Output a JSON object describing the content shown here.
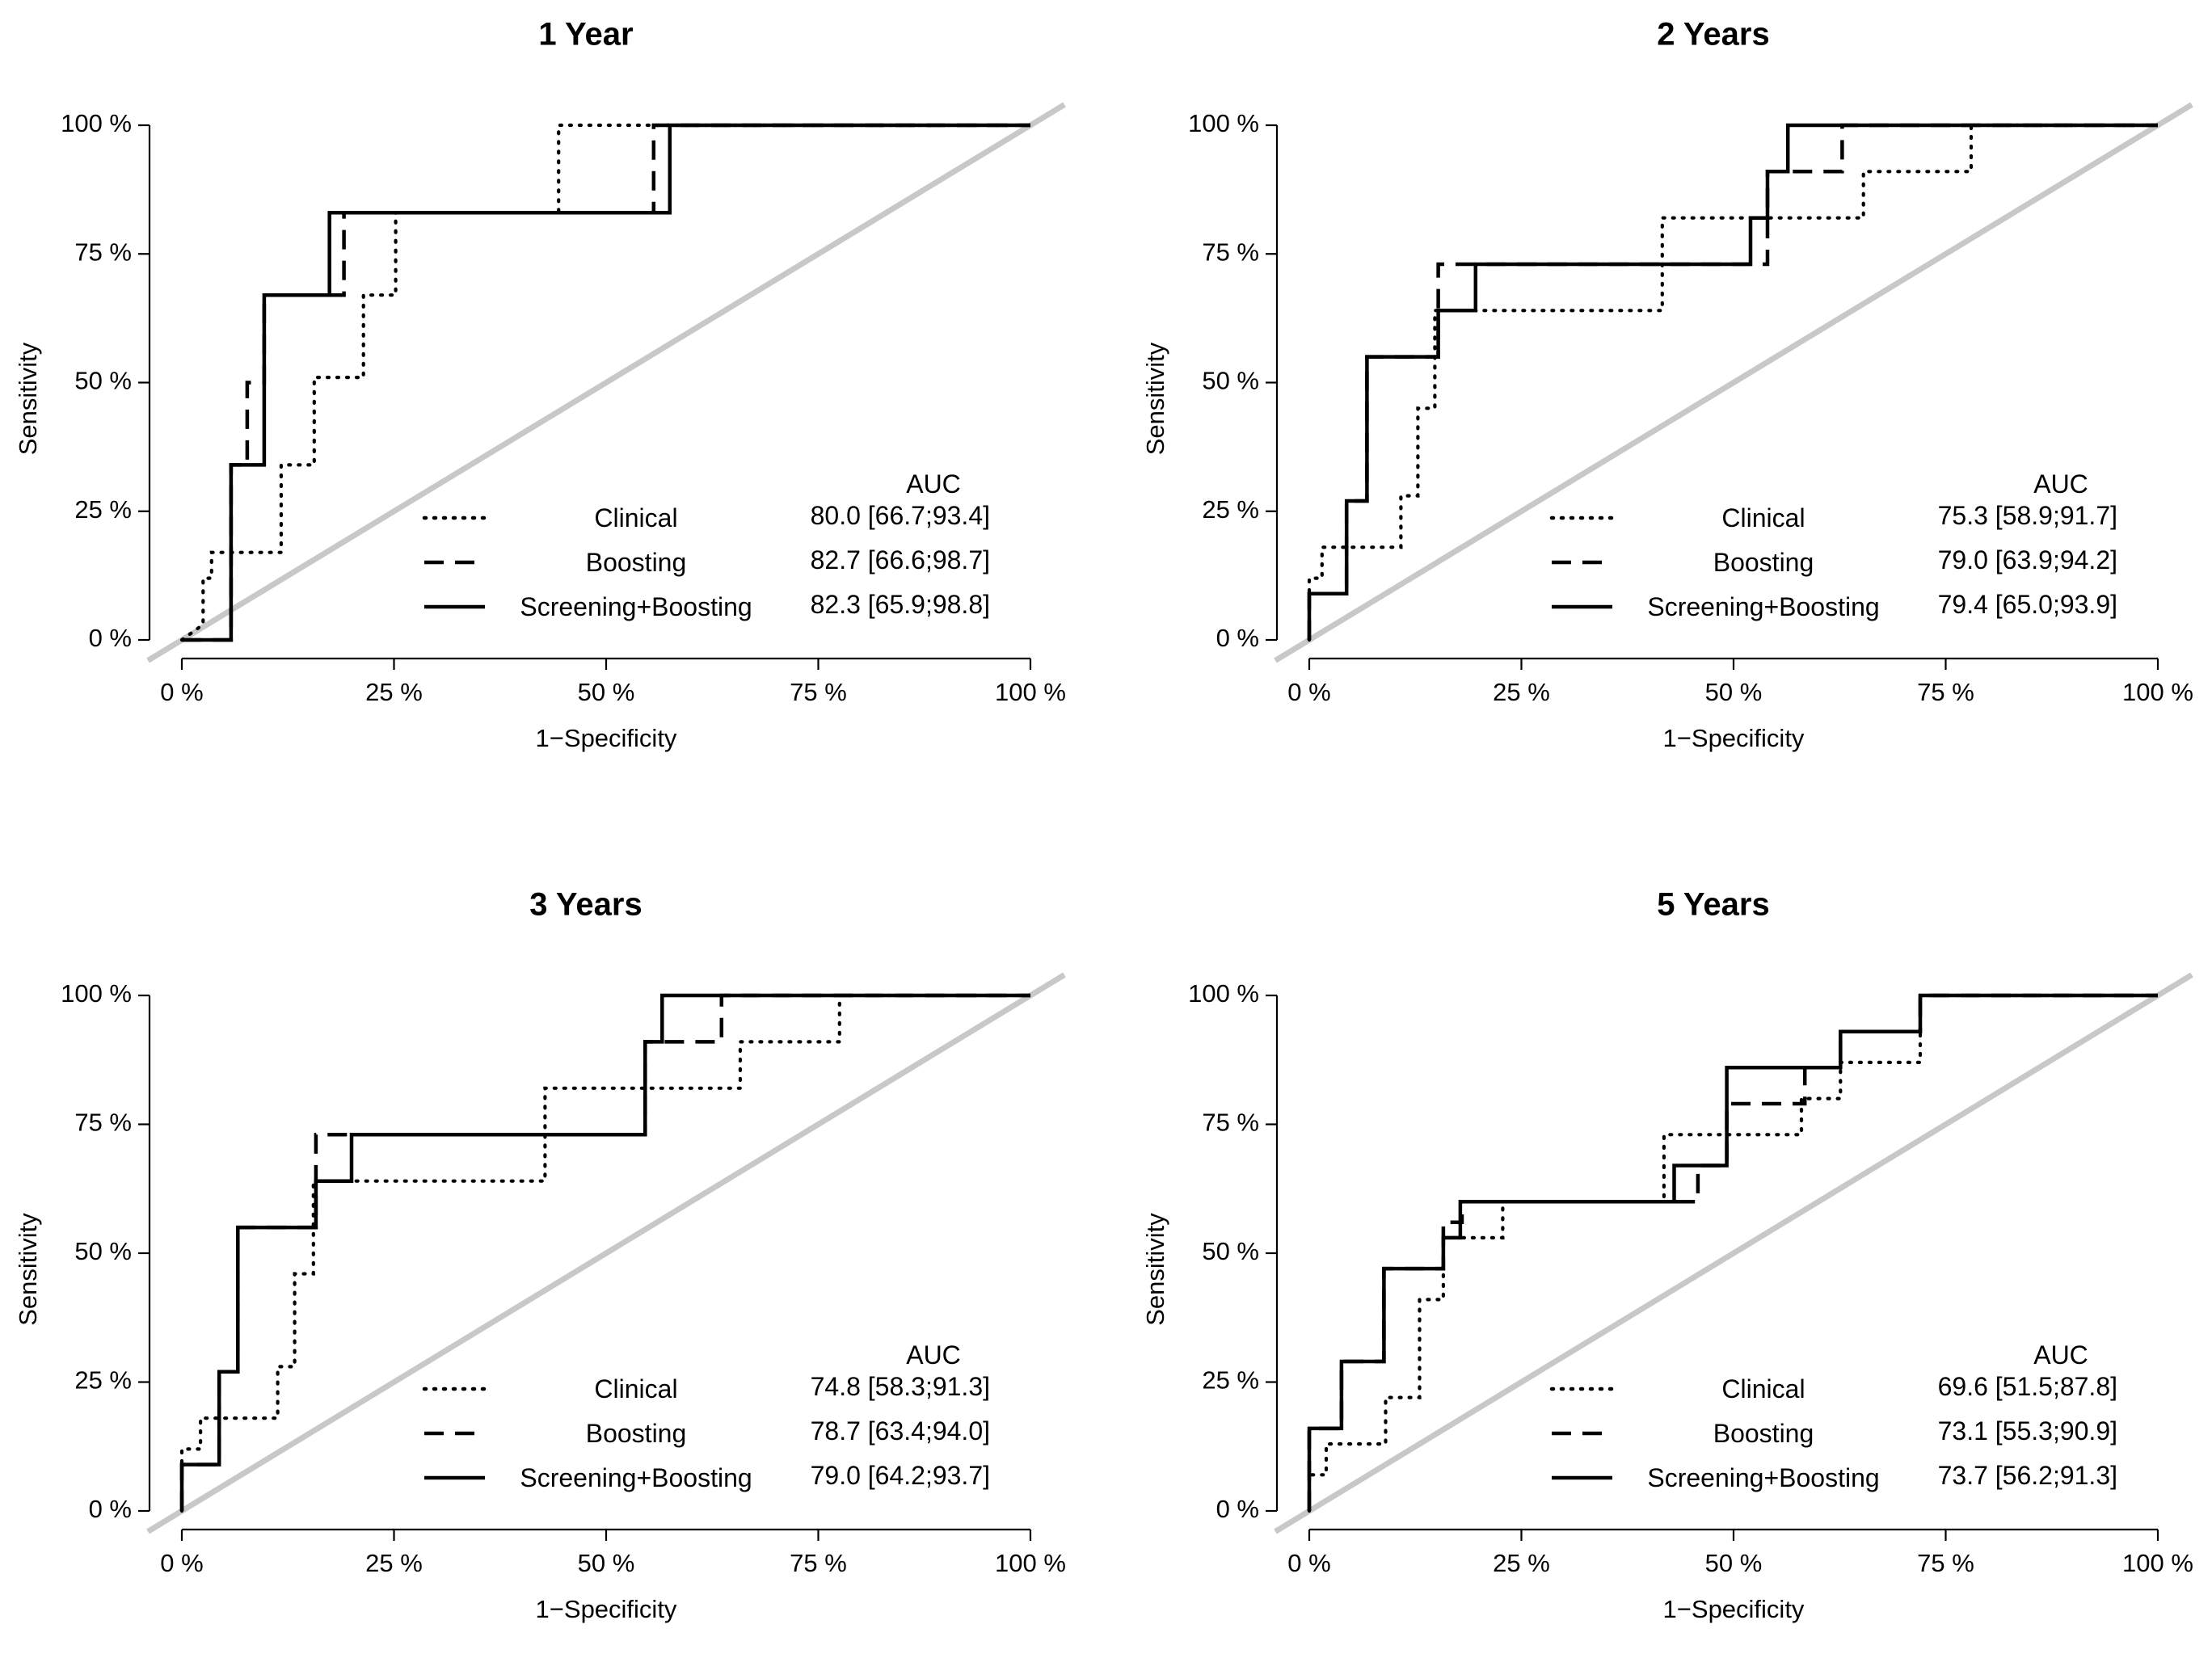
{
  "colors": {
    "curve": "#000000",
    "diagonal": "#c8c8c8",
    "background": "#ffffff"
  },
  "chart_data": [
    {
      "type": "line",
      "title": "1 Year",
      "xlabel": "1−Specificity",
      "ylabel": "Sensitivity",
      "xlim": [
        0,
        100
      ],
      "ylim": [
        0,
        100
      ],
      "x_ticks": [
        0,
        25,
        50,
        75,
        100
      ],
      "y_ticks": [
        0,
        25,
        50,
        75,
        100
      ],
      "x_tick_labels": [
        "0 %",
        "25 %",
        "50 %",
        "75 %",
        "100 %"
      ],
      "y_tick_labels": [
        "0 %",
        "25 %",
        "50 %",
        "75 %",
        "100 %"
      ],
      "auc_header": "AUC",
      "series": [
        {
          "name": "Clinical",
          "line_style": "dotted",
          "auc": "80.0 [66.7;93.4]",
          "points": [
            [
              0,
              0
            ],
            [
              2.5,
              3
            ],
            [
              2.5,
              12
            ],
            [
              3.5,
              12
            ],
            [
              3.5,
              17
            ],
            [
              11.7,
              17
            ],
            [
              11.7,
              34
            ],
            [
              15.6,
              34
            ],
            [
              15.6,
              51
            ],
            [
              21.4,
              51
            ],
            [
              21.4,
              67
            ],
            [
              25.2,
              67
            ],
            [
              25.2,
              83
            ],
            [
              44.4,
              83
            ],
            [
              44.4,
              100
            ],
            [
              100,
              100
            ]
          ]
        },
        {
          "name": "Boosting",
          "line_style": "dashed",
          "auc": "82.7 [66.6;98.7]",
          "points": [
            [
              0,
              0
            ],
            [
              5.8,
              0
            ],
            [
              5.8,
              34
            ],
            [
              7.7,
              34
            ],
            [
              7.7,
              50
            ],
            [
              9.7,
              50
            ],
            [
              9.7,
              67
            ],
            [
              19.1,
              67
            ],
            [
              19.1,
              83
            ],
            [
              55.6,
              83
            ],
            [
              55.6,
              100
            ],
            [
              100,
              100
            ]
          ]
        },
        {
          "name": "Screening+Boosting",
          "line_style": "solid",
          "auc": "82.3 [65.9;98.8]",
          "points": [
            [
              0,
              0
            ],
            [
              5.8,
              0
            ],
            [
              5.8,
              34
            ],
            [
              9.7,
              34
            ],
            [
              9.7,
              67
            ],
            [
              17.4,
              67
            ],
            [
              17.4,
              83
            ],
            [
              57.5,
              83
            ],
            [
              57.5,
              100
            ],
            [
              100,
              100
            ]
          ]
        }
      ]
    },
    {
      "type": "line",
      "title": "2 Years",
      "xlabel": "1−Specificity",
      "ylabel": "Sensitivity",
      "xlim": [
        0,
        100
      ],
      "ylim": [
        0,
        100
      ],
      "x_ticks": [
        0,
        25,
        50,
        75,
        100
      ],
      "y_ticks": [
        0,
        25,
        50,
        75,
        100
      ],
      "x_tick_labels": [
        "0 %",
        "25 %",
        "50 %",
        "75 %",
        "100 %"
      ],
      "y_tick_labels": [
        "0 %",
        "25 %",
        "50 %",
        "75 %",
        "100 %"
      ],
      "auc_header": "AUC",
      "series": [
        {
          "name": "Clinical",
          "line_style": "dotted",
          "auc": "75.3 [58.9;91.7]",
          "points": [
            [
              0,
              0
            ],
            [
              0,
              12
            ],
            [
              1.5,
              12
            ],
            [
              1.5,
              18
            ],
            [
              10.8,
              18
            ],
            [
              10.8,
              28
            ],
            [
              12.8,
              28
            ],
            [
              12.8,
              45
            ],
            [
              14.8,
              45
            ],
            [
              14.8,
              64
            ],
            [
              41.6,
              64
            ],
            [
              41.6,
              82
            ],
            [
              65.3,
              82
            ],
            [
              65.3,
              91
            ],
            [
              78.0,
              91
            ],
            [
              78.0,
              100
            ],
            [
              100,
              100
            ]
          ]
        },
        {
          "name": "Boosting",
          "line_style": "dashed",
          "auc": "79.0 [63.9;94.2]",
          "points": [
            [
              0,
              0
            ],
            [
              0,
              9
            ],
            [
              4.4,
              9
            ],
            [
              4.4,
              27
            ],
            [
              6.8,
              27
            ],
            [
              6.8,
              55
            ],
            [
              15.2,
              55
            ],
            [
              15.2,
              73
            ],
            [
              19.6,
              73
            ],
            [
              19.6,
              73
            ],
            [
              54.0,
              73
            ],
            [
              54.0,
              91
            ],
            [
              62.8,
              91
            ],
            [
              62.8,
              100
            ],
            [
              100,
              100
            ]
          ]
        },
        {
          "name": "Screening+Boosting",
          "line_style": "solid",
          "auc": "79.4 [65.0;93.9]",
          "points": [
            [
              0,
              0
            ],
            [
              0,
              9
            ],
            [
              4.4,
              9
            ],
            [
              4.4,
              27
            ],
            [
              6.8,
              27
            ],
            [
              6.8,
              55
            ],
            [
              15.2,
              55
            ],
            [
              15.2,
              64
            ],
            [
              19.6,
              64
            ],
            [
              19.6,
              73
            ],
            [
              52.0,
              73
            ],
            [
              52.0,
              82
            ],
            [
              54.0,
              82
            ],
            [
              54.0,
              91
            ],
            [
              56.4,
              91
            ],
            [
              56.4,
              100
            ],
            [
              100,
              100
            ]
          ]
        }
      ]
    },
    {
      "type": "line",
      "title": "3 Years",
      "xlabel": "1−Specificity",
      "ylabel": "Sensitivity",
      "xlim": [
        0,
        100
      ],
      "ylim": [
        0,
        100
      ],
      "x_ticks": [
        0,
        25,
        50,
        75,
        100
      ],
      "y_ticks": [
        0,
        25,
        50,
        75,
        100
      ],
      "x_tick_labels": [
        "0 %",
        "25 %",
        "50 %",
        "75 %",
        "100 %"
      ],
      "y_tick_labels": [
        "0 %",
        "25 %",
        "50 %",
        "75 %",
        "100 %"
      ],
      "auc_header": "AUC",
      "series": [
        {
          "name": "Clinical",
          "line_style": "dotted",
          "auc": "74.8 [58.3;91.3]",
          "points": [
            [
              0,
              0
            ],
            [
              0,
              12
            ],
            [
              2.2,
              12
            ],
            [
              2.2,
              18
            ],
            [
              11.3,
              18
            ],
            [
              11.3,
              28
            ],
            [
              13.3,
              28
            ],
            [
              13.3,
              46
            ],
            [
              15.5,
              46
            ],
            [
              15.5,
              64
            ],
            [
              42.8,
              64
            ],
            [
              42.8,
              82
            ],
            [
              65.8,
              82
            ],
            [
              65.8,
              91
            ],
            [
              77.5,
              91
            ],
            [
              77.5,
              100
            ],
            [
              100,
              100
            ]
          ]
        },
        {
          "name": "Boosting",
          "line_style": "dashed",
          "auc": "78.7 [63.4;94.0]",
          "points": [
            [
              0,
              0
            ],
            [
              0,
              9
            ],
            [
              4.4,
              9
            ],
            [
              4.4,
              27
            ],
            [
              6.6,
              27
            ],
            [
              6.6,
              55
            ],
            [
              15.8,
              55
            ],
            [
              15.8,
              73
            ],
            [
              20.0,
              73
            ],
            [
              54.6,
              73
            ],
            [
              54.6,
              91
            ],
            [
              63.6,
              91
            ],
            [
              63.6,
              100
            ],
            [
              100,
              100
            ]
          ]
        },
        {
          "name": "Screening+Boosting",
          "line_style": "solid",
          "auc": "79.0 [64.2;93.7]",
          "points": [
            [
              0,
              0
            ],
            [
              0,
              9
            ],
            [
              4.4,
              9
            ],
            [
              4.4,
              27
            ],
            [
              6.6,
              27
            ],
            [
              6.6,
              55
            ],
            [
              15.8,
              55
            ],
            [
              15.8,
              64
            ],
            [
              20.0,
              64
            ],
            [
              20.0,
              73
            ],
            [
              54.6,
              73
            ],
            [
              54.6,
              91
            ],
            [
              56.6,
              91
            ],
            [
              56.6,
              100
            ],
            [
              100,
              100
            ]
          ]
        }
      ]
    },
    {
      "type": "line",
      "title": "5 Years",
      "xlabel": "1−Specificity",
      "ylabel": "Sensitivity",
      "xlim": [
        0,
        100
      ],
      "ylim": [
        0,
        100
      ],
      "x_ticks": [
        0,
        25,
        50,
        75,
        100
      ],
      "y_ticks": [
        0,
        25,
        50,
        75,
        100
      ],
      "x_tick_labels": [
        "0 %",
        "25 %",
        "50 %",
        "75 %",
        "100 %"
      ],
      "y_tick_labels": [
        "0 %",
        "25 %",
        "50 %",
        "75 %",
        "100 %"
      ],
      "auc_header": "AUC",
      "series": [
        {
          "name": "Clinical",
          "line_style": "dotted",
          "auc": "69.6 [51.5;87.8]",
          "points": [
            [
              0,
              0
            ],
            [
              0,
              7
            ],
            [
              2.0,
              7
            ],
            [
              2.0,
              13
            ],
            [
              9.0,
              13
            ],
            [
              9.0,
              22
            ],
            [
              13.0,
              22
            ],
            [
              13.0,
              41
            ],
            [
              15.8,
              41
            ],
            [
              15.8,
              53
            ],
            [
              22.8,
              53
            ],
            [
              22.8,
              60
            ],
            [
              41.8,
              60
            ],
            [
              41.8,
              73
            ],
            [
              58.0,
              73
            ],
            [
              58.0,
              80
            ],
            [
              62.6,
              80
            ],
            [
              62.6,
              87
            ],
            [
              72.0,
              87
            ],
            [
              72.0,
              100
            ],
            [
              100,
              100
            ]
          ]
        },
        {
          "name": "Boosting",
          "line_style": "dashed",
          "auc": "73.1 [55.3;90.9]",
          "points": [
            [
              0,
              0
            ],
            [
              0,
              16
            ],
            [
              3.8,
              16
            ],
            [
              3.8,
              29
            ],
            [
              8.8,
              29
            ],
            [
              8.8,
              47
            ],
            [
              15.8,
              47
            ],
            [
              15.8,
              56
            ],
            [
              18.0,
              56
            ],
            [
              18.0,
              60
            ],
            [
              45.8,
              60
            ],
            [
              45.8,
              67
            ],
            [
              49.2,
              67
            ],
            [
              49.2,
              79
            ],
            [
              58.4,
              79
            ],
            [
              58.4,
              86
            ],
            [
              62.6,
              86
            ],
            [
              62.6,
              93
            ],
            [
              72.0,
              93
            ],
            [
              72.0,
              100
            ],
            [
              100,
              100
            ]
          ]
        },
        {
          "name": "Screening+Boosting",
          "line_style": "solid",
          "auc": "73.7 [56.2;91.3]",
          "points": [
            [
              0,
              0
            ],
            [
              0,
              16
            ],
            [
              3.8,
              16
            ],
            [
              3.8,
              29
            ],
            [
              8.8,
              29
            ],
            [
              8.8,
              47
            ],
            [
              15.8,
              47
            ],
            [
              15.8,
              53
            ],
            [
              17.8,
              53
            ],
            [
              17.8,
              60
            ],
            [
              43.0,
              60
            ],
            [
              43.0,
              67
            ],
            [
              49.2,
              67
            ],
            [
              49.2,
              86
            ],
            [
              62.6,
              86
            ],
            [
              62.6,
              93
            ],
            [
              72.0,
              93
            ],
            [
              72.0,
              100
            ],
            [
              100,
              100
            ]
          ]
        }
      ]
    }
  ]
}
